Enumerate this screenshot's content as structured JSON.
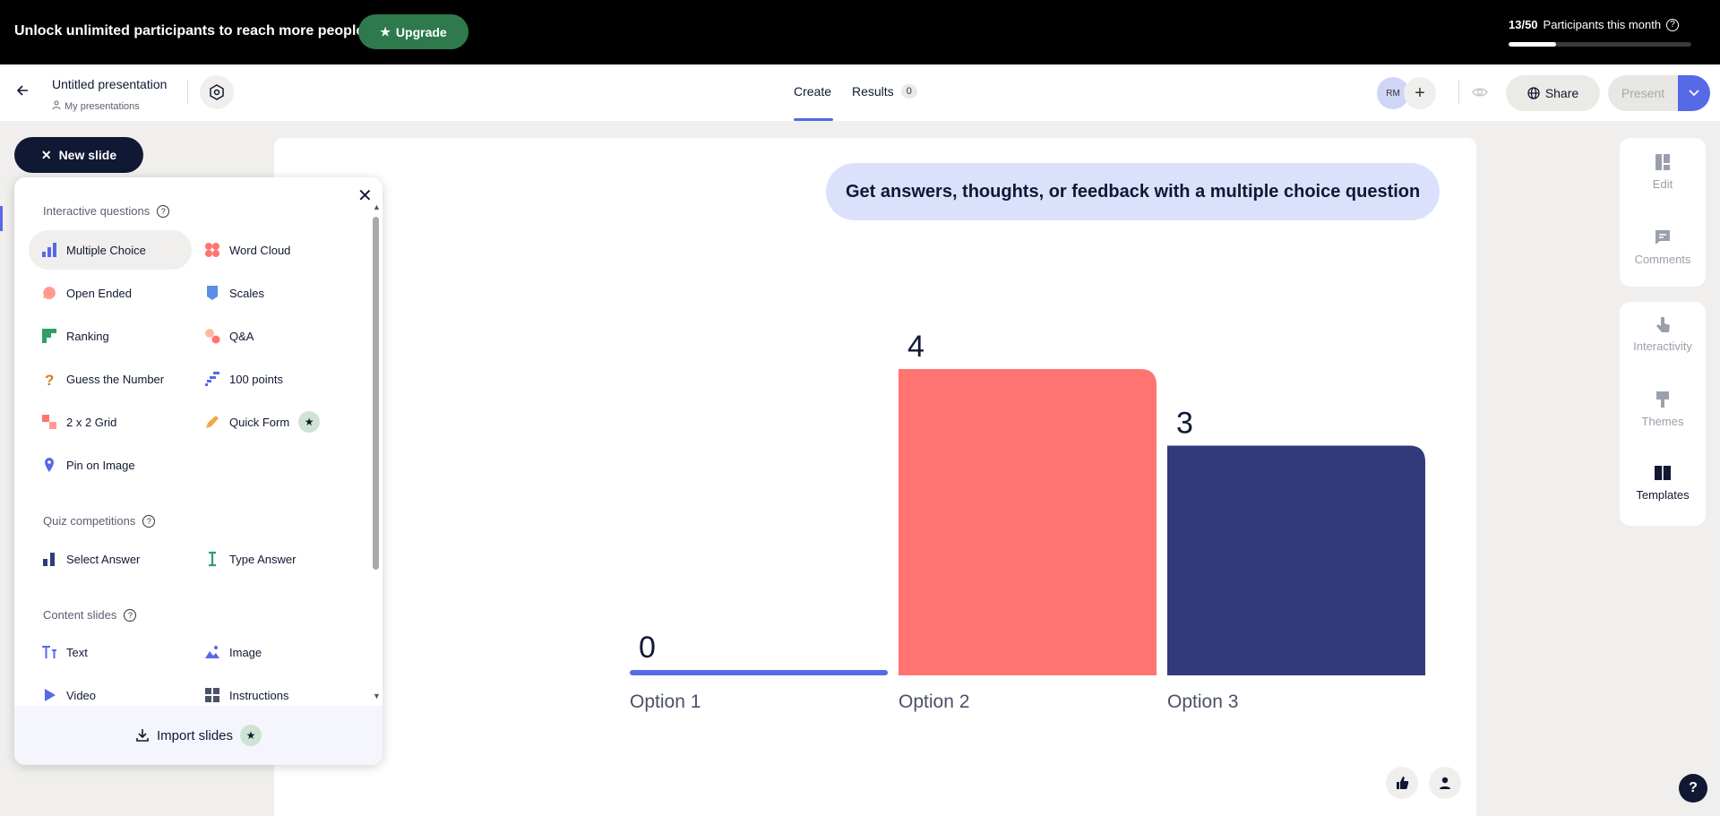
{
  "banner": {
    "text": "Unlock unlimited participants to reach more people.",
    "upgrade_label": "Upgrade",
    "participants_count": "13/50",
    "participants_label": "Participants this month",
    "participants_fraction": 0.26
  },
  "header": {
    "title": "Untitled presentation",
    "location": "My presentations",
    "tab_create": "Create",
    "tab_results": "Results",
    "results_count": "0",
    "avatar_initials": "RM",
    "share_label": "Share",
    "present_label": "Present"
  },
  "new_slide": {
    "label": "New slide"
  },
  "popover": {
    "interactive_label": "Interactive questions",
    "interactive_items": [
      {
        "label": "Multiple Choice",
        "icon": "bar-chart-icon"
      },
      {
        "label": "Word Cloud",
        "icon": "word-cloud-icon"
      },
      {
        "label": "Open Ended",
        "icon": "speech-bubble-icon"
      },
      {
        "label": "Scales",
        "icon": "scales-icon"
      },
      {
        "label": "Ranking",
        "icon": "ranking-icon"
      },
      {
        "label": "Q&A",
        "icon": "qa-icon"
      },
      {
        "label": "Guess the Number",
        "icon": "question-mark-icon"
      },
      {
        "label": "100 points",
        "icon": "points-icon"
      },
      {
        "label": "2 x 2 Grid",
        "icon": "grid-icon"
      },
      {
        "label": "Quick Form",
        "icon": "pencil-icon"
      },
      {
        "label": "Pin on Image",
        "icon": "pin-icon"
      }
    ],
    "quiz_label": "Quiz competitions",
    "quiz_items": [
      {
        "label": "Select Answer",
        "icon": "select-answer-icon"
      },
      {
        "label": "Type Answer",
        "icon": "text-cursor-icon"
      }
    ],
    "content_label": "Content slides",
    "content_items": [
      {
        "label": "Text",
        "icon": "text-icon"
      },
      {
        "label": "Image",
        "icon": "image-icon"
      },
      {
        "label": "Video",
        "icon": "play-icon"
      },
      {
        "label": "Instructions",
        "icon": "instructions-icon"
      }
    ],
    "import_label": "Import slides"
  },
  "slide": {
    "question": "Get answers, thoughts, or feedback with a multiple choice question"
  },
  "chart_data": {
    "type": "bar",
    "categories": [
      "Option 1",
      "Option 2",
      "Option 3"
    ],
    "values": [
      0,
      4,
      3
    ],
    "colors": [
      "#5769e7",
      "#ff7470",
      "#313b7c"
    ],
    "title": "",
    "xlabel": "",
    "ylabel": ""
  },
  "right_panel": {
    "edit": "Edit",
    "comments": "Comments",
    "interactivity": "Interactivity",
    "themes": "Themes",
    "templates": "Templates"
  },
  "help_fab": "?"
}
